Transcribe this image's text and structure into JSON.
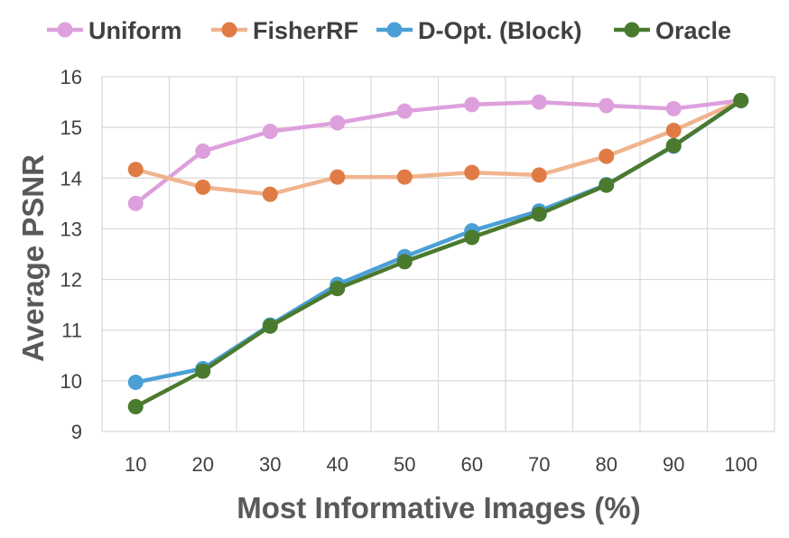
{
  "chart_data": {
    "type": "line",
    "title": "",
    "xlabel": "Most Informative Images (%)",
    "ylabel": "Average PSNR",
    "x": [
      10,
      20,
      30,
      40,
      50,
      60,
      70,
      80,
      90,
      100
    ],
    "xticks": [
      "10",
      "20",
      "30",
      "40",
      "50",
      "60",
      "70",
      "80",
      "90",
      "100"
    ],
    "yticks": [
      "9",
      "10",
      "11",
      "12",
      "13",
      "14",
      "15",
      "16"
    ],
    "ylim": [
      9,
      16
    ],
    "grid": true,
    "legend_position": "top",
    "series": [
      {
        "name": "Uniform",
        "color": "#dda0dd",
        "line_color": "#dda0dd",
        "values": [
          13.5,
          14.53,
          14.92,
          15.09,
          15.32,
          15.45,
          15.5,
          15.43,
          15.37,
          15.53
        ]
      },
      {
        "name": "FisherRF",
        "color": "#e07b45",
        "line_color": "#f0b48e",
        "values": [
          14.17,
          13.82,
          13.68,
          14.02,
          14.02,
          14.11,
          14.06,
          14.43,
          14.94,
          15.53
        ]
      },
      {
        "name": "D-Opt. (Block)",
        "color": "#4a9fd6",
        "line_color": "#4a9fd6",
        "values": [
          9.97,
          10.24,
          11.1,
          11.9,
          12.45,
          12.96,
          13.35,
          13.87,
          14.63,
          15.53
        ]
      },
      {
        "name": "Oracle",
        "color": "#4a7a2e",
        "line_color": "#4a7a2e",
        "values": [
          9.49,
          10.19,
          11.08,
          11.82,
          12.35,
          12.83,
          13.29,
          13.86,
          14.64,
          15.53
        ]
      }
    ]
  }
}
